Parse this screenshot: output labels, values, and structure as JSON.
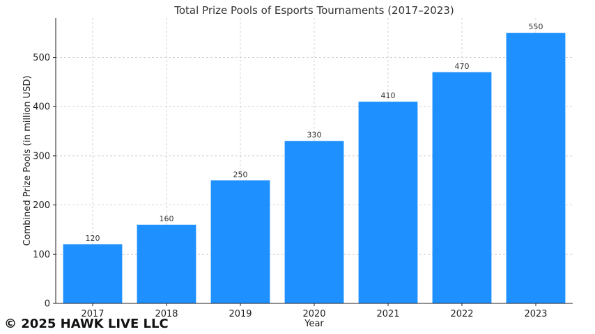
{
  "chart_data": {
    "type": "bar",
    "title": "Total Prize Pools of Esports Tournaments (2017–2023)",
    "xlabel": "Year",
    "ylabel": "Combined Prize Pools (in million USD)",
    "categories": [
      "2017",
      "2018",
      "2019",
      "2020",
      "2021",
      "2022",
      "2023"
    ],
    "values": [
      120,
      160,
      250,
      330,
      410,
      470,
      550
    ],
    "ylim": [
      0,
      580
    ],
    "yticks": [
      0,
      100,
      200,
      300,
      400,
      500
    ],
    "grid": true,
    "data_labels": true,
    "bar_color": "#1E90FF"
  },
  "watermark": {
    "text": "© 2025 HAWK LIVE LLC"
  }
}
